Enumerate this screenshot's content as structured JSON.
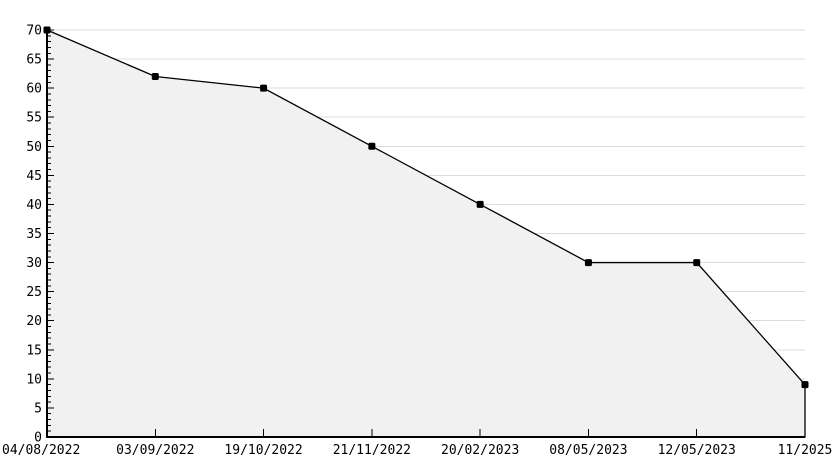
{
  "chart_data": {
    "type": "area",
    "title": "",
    "x_labels": [
      "04/08/2022",
      "03/09/2022",
      "19/10/2022",
      "21/11/2022",
      "20/02/2023",
      "08/05/2023",
      "12/05/2023",
      "11/2025"
    ],
    "series": [
      {
        "name": "value",
        "values": [
          70,
          62,
          60,
          50,
          40,
          30,
          30,
          9
        ]
      }
    ],
    "ylim": [
      0,
      70
    ],
    "y_tick_step": 5,
    "y_minor_tick_step": 1,
    "y_tick_labels": [
      "0",
      "5",
      "10",
      "15",
      "20",
      "25",
      "30",
      "35",
      "40",
      "45",
      "50",
      "55",
      "60",
      "65",
      "70"
    ],
    "grid": "horizontal-major",
    "legend": "none",
    "colors": {
      "background": "#ffffff",
      "fill": "#f1f1f1",
      "line": "#000000",
      "marker": "#000000",
      "grid": "#dcdcdc",
      "axis": "#000000",
      "text": "#000000"
    }
  }
}
